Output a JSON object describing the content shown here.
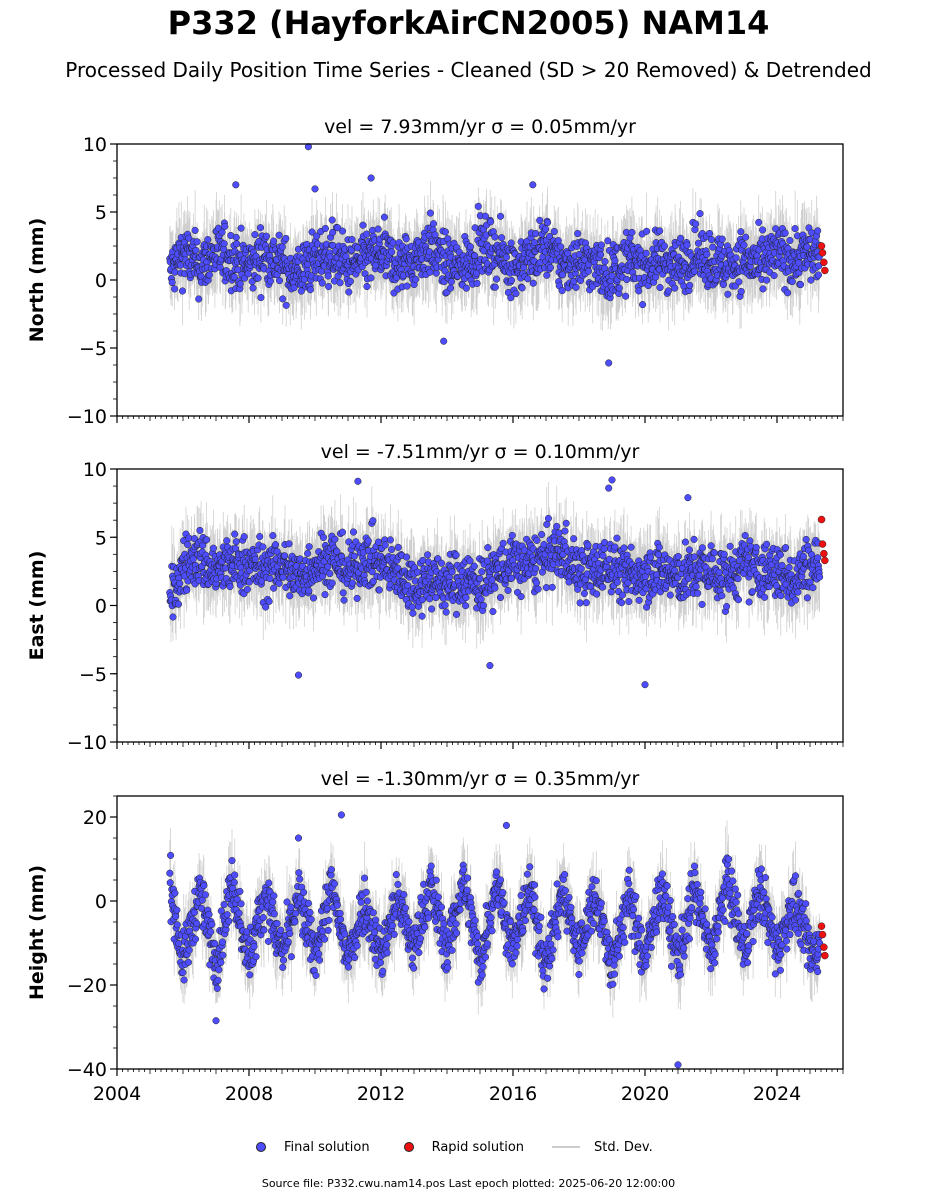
{
  "title": "P332 (HayforkAirCN2005) NAM14",
  "subtitle": "Processed Daily Position Time Series - Cleaned (SD > 20 Removed) & Detrended",
  "legend": {
    "final": "Final solution",
    "rapid": "Rapid solution",
    "std": "Std. Dev."
  },
  "footer": "Source file: P332.cwu.nam14.pos  Last epoch plotted: 2025-06-20 12:00:00",
  "colors": {
    "final": "#4d4dff",
    "rapid": "#ee1111",
    "std": "#888888"
  },
  "chart_data": [
    {
      "type": "scatter",
      "title": "vel = 7.93mm/yr   σ = 0.05mm/yr",
      "ylabel": "North (mm)",
      "ylim": [
        -10,
        10
      ],
      "xlim": [
        2004,
        2026
      ],
      "yticks": [
        -10,
        -5,
        0,
        5,
        10
      ],
      "ytick_labels": [
        "−10",
        "−5",
        "0",
        "5",
        "10"
      ],
      "series": [
        {
          "name": "Final solution",
          "x": [
            2005.6,
            2006.0,
            2006.5,
            2007.0,
            2007.5,
            2008.0,
            2008.5,
            2009.0,
            2009.5,
            2010.0,
            2010.5,
            2011.0,
            2011.5,
            2012.0,
            2012.5,
            2013.0,
            2013.5,
            2014.0,
            2014.5,
            2015.0,
            2015.5,
            2016.0,
            2016.5,
            2017.0,
            2017.5,
            2018.0,
            2018.5,
            2019.0,
            2019.5,
            2020.0,
            2020.5,
            2021.0,
            2021.5,
            2022.0,
            2022.5,
            2023.0,
            2023.5,
            2024.0,
            2024.5,
            2025.0
          ],
          "y": [
            0.5,
            2.0,
            1.0,
            2.0,
            1.5,
            1.0,
            2.0,
            1.0,
            0.5,
            1.5,
            2.0,
            1.0,
            1.5,
            2.0,
            1.0,
            1.5,
            2.5,
            1.0,
            1.0,
            2.5,
            2.0,
            1.0,
            1.5,
            2.5,
            1.0,
            1.5,
            1.0,
            0.5,
            1.5,
            1.0,
            1.5,
            1.0,
            2.0,
            1.5,
            1.0,
            1.5,
            1.0,
            2.0,
            1.5,
            2.0
          ]
        },
        {
          "name": "Rapid solution",
          "x": [
            2025.35,
            2025.38,
            2025.42,
            2025.45
          ],
          "y": [
            2.5,
            2.0,
            1.3,
            0.7
          ]
        }
      ],
      "outliers": {
        "x": [
          2009.8,
          2007.6,
          2011.7,
          2018.9,
          2013.9,
          2010.0,
          2016.6
        ],
        "y": [
          9.8,
          7.0,
          7.5,
          -6.1,
          -4.5,
          6.7,
          7.0
        ]
      }
    },
    {
      "type": "scatter",
      "title": "vel = -7.51mm/yr   σ = 0.10mm/yr",
      "ylabel": "East (mm)",
      "ylim": [
        -10,
        10
      ],
      "xlim": [
        2004,
        2026
      ],
      "yticks": [
        -10,
        -5,
        0,
        5,
        10
      ],
      "ytick_labels": [
        "−10",
        "−5",
        "0",
        "5",
        "10"
      ],
      "series": [
        {
          "name": "Final solution",
          "x": [
            2005.6,
            2006.0,
            2006.5,
            2007.0,
            2007.5,
            2008.0,
            2008.5,
            2009.0,
            2009.5,
            2010.0,
            2010.5,
            2011.0,
            2011.5,
            2012.0,
            2012.5,
            2013.0,
            2013.5,
            2014.0,
            2014.5,
            2015.0,
            2015.5,
            2016.0,
            2016.5,
            2017.0,
            2017.5,
            2018.0,
            2018.5,
            2019.0,
            2019.5,
            2020.0,
            2020.5,
            2021.0,
            2021.5,
            2022.0,
            2022.5,
            2023.0,
            2023.5,
            2024.0,
            2024.5,
            2025.0
          ],
          "y": [
            0.0,
            3.0,
            3.5,
            2.5,
            3.0,
            3.0,
            2.5,
            3.0,
            2.0,
            3.0,
            3.5,
            2.5,
            3.5,
            3.0,
            2.5,
            1.5,
            2.0,
            1.5,
            2.0,
            1.5,
            2.5,
            3.0,
            3.0,
            3.5,
            4.0,
            2.5,
            2.5,
            3.0,
            2.0,
            2.5,
            2.5,
            2.0,
            2.5,
            2.5,
            2.0,
            3.0,
            2.5,
            2.5,
            2.0,
            3.0
          ]
        },
        {
          "name": "Rapid solution",
          "x": [
            2025.35,
            2025.38,
            2025.42,
            2025.45
          ],
          "y": [
            6.3,
            4.5,
            3.8,
            3.3
          ]
        }
      ],
      "outliers": {
        "x": [
          2009.5,
          2015.3,
          2019.0,
          2011.3,
          2020.0,
          2018.9,
          2021.3
        ],
        "y": [
          -5.1,
          -4.4,
          9.2,
          9.1,
          -5.8,
          8.6,
          7.9
        ]
      }
    },
    {
      "type": "scatter",
      "title": "vel = -1.30mm/yr   σ = 0.35mm/yr",
      "ylabel": "Height (mm)",
      "ylim": [
        -40,
        25
      ],
      "xlim": [
        2004,
        2026
      ],
      "yticks": [
        -40,
        -20,
        0,
        20
      ],
      "ytick_labels": [
        "−40",
        "−20",
        "0",
        "20"
      ],
      "series": [
        {
          "name": "Final solution",
          "x": [
            2005.6,
            2006.0,
            2006.5,
            2007.0,
            2007.5,
            2008.0,
            2008.5,
            2009.0,
            2009.5,
            2010.0,
            2010.5,
            2011.0,
            2011.5,
            2012.0,
            2012.5,
            2013.0,
            2013.5,
            2014.0,
            2014.5,
            2015.0,
            2015.5,
            2016.0,
            2016.5,
            2017.0,
            2017.5,
            2018.0,
            2018.5,
            2019.0,
            2019.5,
            2020.0,
            2020.5,
            2021.0,
            2021.5,
            2022.0,
            2022.5,
            2023.0,
            2023.5,
            2024.0,
            2024.5,
            2025.0
          ],
          "y": [
            5.0,
            -15.0,
            2.0,
            -15.0,
            5.0,
            -14.0,
            2.0,
            -13.0,
            1.0,
            -13.0,
            3.0,
            -14.0,
            0.0,
            -13.0,
            1.0,
            -12.0,
            4.0,
            -12.0,
            5.0,
            -15.0,
            5.0,
            -12.0,
            3.0,
            -16.0,
            3.0,
            -12.0,
            2.0,
            -16.0,
            1.0,
            -14.0,
            3.0,
            -14.0,
            3.0,
            -13.0,
            5.0,
            -12.0,
            3.0,
            -12.0,
            0.0,
            -12.0
          ]
        },
        {
          "name": "Rapid solution",
          "x": [
            2025.35,
            2025.38,
            2025.42,
            2025.45
          ],
          "y": [
            -6.0,
            -8.0,
            -11.0,
            -13.0
          ]
        }
      ],
      "outliers": {
        "x": [
          2010.8,
          2015.8,
          2021.0,
          2007.0,
          2009.5
        ],
        "y": [
          20.5,
          18.0,
          -39.0,
          -28.5,
          15.0
        ]
      }
    }
  ],
  "xaxis": {
    "ticks": [
      2004,
      2008,
      2012,
      2016,
      2020,
      2024
    ],
    "labels": [
      "2004",
      "2008",
      "2012",
      "2016",
      "2020",
      "2024"
    ]
  }
}
